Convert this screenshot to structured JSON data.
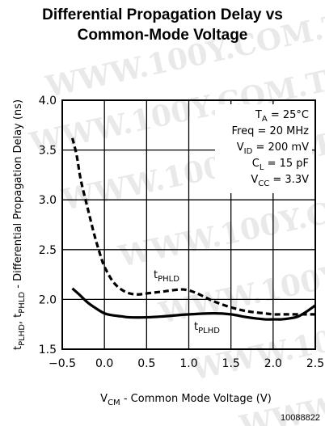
{
  "chart_data": {
    "type": "line",
    "title_line1": "Differential Propagation Delay vs",
    "title_line2": "Common-Mode Voltage",
    "xlabel": {
      "main": "V",
      "sub": "CM",
      "rest": " - Common Mode Voltage (V)"
    },
    "ylabel": {
      "p1": "t",
      "s1": "PLHD",
      "p2": ", t",
      "s2": "PHLD",
      "p3": " - Differential Propagation Delay (ns)"
    },
    "xlim": [
      -0.5,
      2.5
    ],
    "ylim": [
      1.5,
      4.0
    ],
    "x_ticks": [
      -0.5,
      0.0,
      0.5,
      1.0,
      1.5,
      2.0,
      2.5
    ],
    "x_tick_labels": [
      "-0.5",
      "0.0",
      "0.5",
      "1.0",
      "1.5",
      "2.0",
      "2.5"
    ],
    "y_ticks": [
      1.5,
      2.0,
      2.5,
      3.0,
      3.5,
      4.0
    ],
    "y_tick_labels": [
      "1.5",
      "2.0",
      "2.5",
      "3.0",
      "3.5",
      "4.0"
    ],
    "grid": true,
    "series": [
      {
        "name": "tPHLD",
        "style": "dashed",
        "x": [
          -0.38,
          -0.33,
          -0.28,
          -0.2,
          -0.12,
          -0.05,
          0.0,
          0.1,
          0.2,
          0.3,
          0.4,
          0.5,
          0.7,
          0.9,
          1.0,
          1.1,
          1.3,
          1.5,
          1.7,
          1.9,
          2.0,
          2.1,
          2.2,
          2.3,
          2.4,
          2.5
        ],
        "y": [
          3.62,
          3.45,
          3.2,
          2.92,
          2.65,
          2.45,
          2.33,
          2.18,
          2.1,
          2.06,
          2.05,
          2.06,
          2.08,
          2.1,
          2.09,
          2.06,
          1.98,
          1.92,
          1.88,
          1.86,
          1.85,
          1.85,
          1.85,
          1.85,
          1.85,
          1.85
        ]
      },
      {
        "name": "tPLHD",
        "style": "solid",
        "x": [
          -0.38,
          -0.3,
          -0.2,
          -0.1,
          0.0,
          0.1,
          0.2,
          0.3,
          0.5,
          0.7,
          1.0,
          1.3,
          1.5,
          1.7,
          1.9,
          2.0,
          2.1,
          2.2,
          2.3,
          2.4,
          2.5
        ],
        "y": [
          2.11,
          2.05,
          1.97,
          1.91,
          1.86,
          1.84,
          1.83,
          1.82,
          1.82,
          1.83,
          1.85,
          1.86,
          1.85,
          1.82,
          1.8,
          1.8,
          1.8,
          1.81,
          1.83,
          1.88,
          1.94
        ]
      }
    ],
    "series_labels": [
      {
        "main": "t",
        "sub": "PHLD"
      },
      {
        "main": "t",
        "sub": "PLHD"
      }
    ],
    "conditions": [
      {
        "main": "T",
        "sub": "A",
        "rest": " = 25°C"
      },
      {
        "main": "Freq = 20 MHz",
        "sub": "",
        "rest": ""
      },
      {
        "main": "V",
        "sub": "ID",
        "rest": " = 200 mV"
      },
      {
        "main": "C",
        "sub": "L",
        "rest": " = 15 pF"
      },
      {
        "main": "V",
        "sub": "CC",
        "rest": " = 3.3V"
      }
    ],
    "figure_id": "10088822",
    "watermark": "WWW.100Y.COM.TW"
  }
}
